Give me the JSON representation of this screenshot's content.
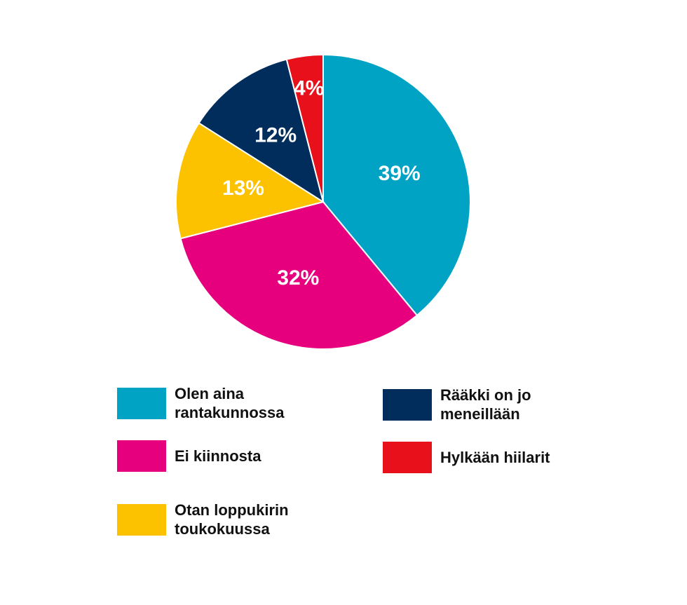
{
  "chart_data": {
    "type": "pie",
    "series": [
      {
        "name": "Olen aina rantakunnossa",
        "color": "#00a3c4",
        "values": [
          39
        ],
        "value_labels": [
          "39%"
        ]
      },
      {
        "name": "Ei kiinnosta",
        "color": "#e6007e",
        "values": [
          32
        ],
        "value_labels": [
          "32%"
        ]
      },
      {
        "name": "Otan loppukirin toukokuussa",
        "color": "#fcc200",
        "values": [
          13
        ],
        "value_labels": [
          "13%"
        ]
      },
      {
        "name": "Rääkki on jo meneillään",
        "color": "#002d5c",
        "values": [
          12
        ],
        "value_labels": [
          "12%"
        ]
      },
      {
        "name": "Hylkään hiilarit",
        "color": "#e8101a",
        "values": [
          4
        ],
        "value_labels": [
          "4%"
        ]
      }
    ]
  }
}
